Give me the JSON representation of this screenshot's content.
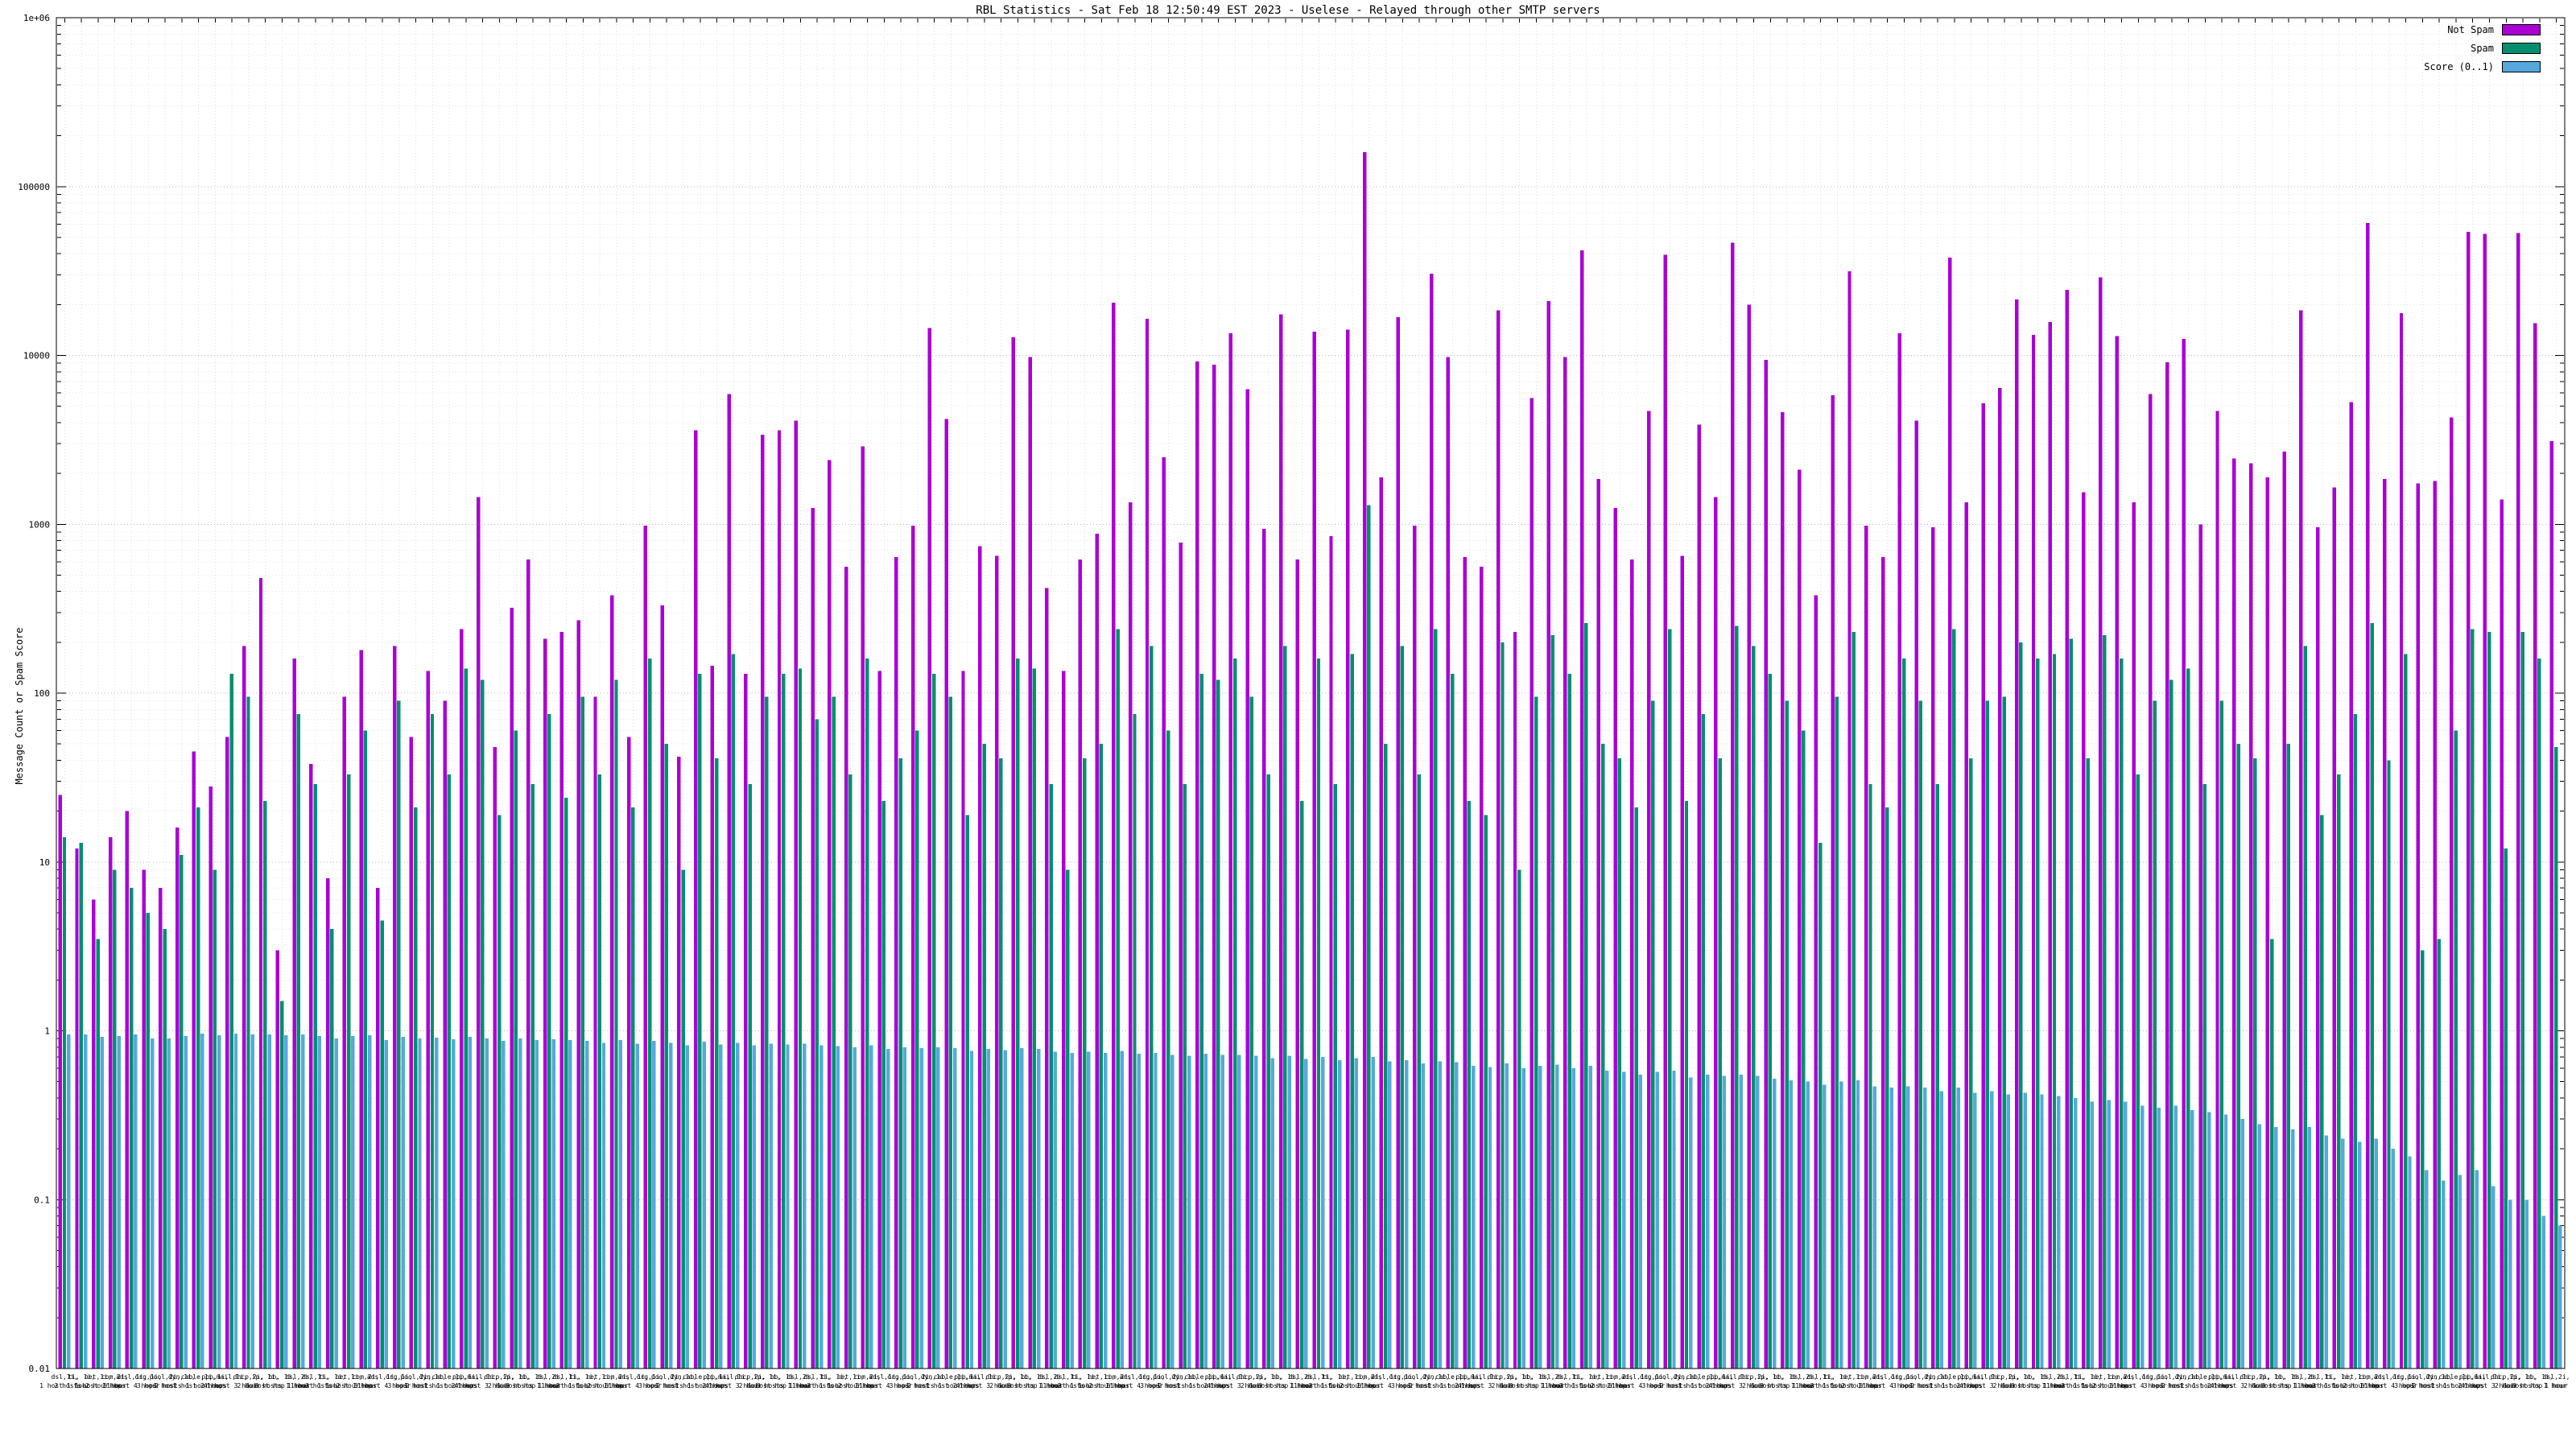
{
  "chart_data": {
    "type": "bar",
    "title": "RBL Statistics - Sat Feb 18 12:50:49 EST 2023 - Uselese - Relayed through other SMTP servers",
    "ylabel": "Message Count or Spam Score",
    "xlabel": "",
    "y_scale": "log",
    "ylim": [
      0.01,
      1000000
    ],
    "grid": true,
    "legend_position": "top-right",
    "y_ticks": [
      {
        "v": 1000000,
        "label": "1e+06"
      },
      {
        "v": 100000,
        "label": "100000"
      },
      {
        "v": 10000,
        "label": "10000"
      },
      {
        "v": 1000,
        "label": "1000"
      },
      {
        "v": 100,
        "label": "100"
      },
      {
        "v": 10,
        "label": "10"
      },
      {
        "v": 1,
        "label": "1"
      },
      {
        "v": 0.1,
        "label": "0.1"
      },
      {
        "v": 0.01,
        "label": "0.01"
      }
    ],
    "x_axis_note": "x tick labels (host names, host/hop/hour counts) are illegible at capture resolution; representative sample labels are cycled",
    "x_labels_sample": [
      {
        "l1": "dsl,1i,",
        "l2": "1 host 1 hour"
      },
      {
        "l1": "ti, 1i,",
        "l2": "2 hosts 2 hour"
      },
      {
        "l1": "net,1i,",
        "l2": "1 host 1 hop"
      },
      {
        "l1": "com,2i,",
        "l2": "5 hour"
      },
      {
        "l1": "adsl,1i,",
        "l2": "1 host 4 hops"
      },
      {
        "l1": "org,1i,",
        "l2": "3 hour"
      },
      {
        "l1": "pool,2i,",
        "l2": "1 host"
      },
      {
        "l1": "dyn,1i,",
        "l2": "2 hosts 1 hour"
      },
      {
        "l1": "cable,1i,",
        "l2": "1 host 2 hour"
      },
      {
        "l1": "ppp,1i,",
        "l2": "4 hops"
      },
      {
        "l1": "mail,1i,",
        "l2": "1 host 3 hour"
      },
      {
        "l1": "dhcp,2i,",
        "l2": "2 hour"
      },
      {
        "l1": "ip, 1i,",
        "l2": "1 host hop"
      },
      {
        "l1": "bb, 1i,",
        "l2": "3 hosts 1 hour"
      },
      {
        "l1": "dsl,2i,",
        "l2": "1 hour"
      }
    ],
    "series": [
      {
        "name": "Not Spam",
        "color": "#aa00d4",
        "values": [
          25,
          12,
          6,
          14,
          20,
          9,
          7,
          16,
          45,
          28,
          55,
          190,
          480,
          3,
          160,
          38,
          8,
          95,
          180,
          7,
          190,
          55,
          135,
          90,
          240,
          1450,
          48,
          320,
          620,
          210,
          230,
          270,
          95,
          380,
          55,
          980,
          330,
          42,
          3600,
          145,
          5900,
          130,
          3400,
          3600,
          4100,
          1250,
          2400,
          560,
          2900,
          135,
          640,
          980,
          14500,
          4200,
          135,
          740,
          650,
          12800,
          9800,
          420,
          135,
          620,
          880,
          20500,
          1350,
          16500,
          2500,
          780,
          9200,
          8800,
          13500,
          6300,
          940,
          17500,
          620,
          13800,
          850,
          14200,
          160000,
          1900,
          16800,
          980,
          30500,
          9800,
          640,
          560,
          18500,
          230,
          5600,
          21000,
          9800,
          42000,
          1850,
          1250,
          620,
          4700,
          39500,
          650,
          3900,
          1450,
          46500,
          20000,
          9400,
          4600,
          2100,
          380,
          5800,
          31500,
          980,
          640,
          13500,
          4100,
          960,
          38000,
          1350,
          5200,
          6400,
          21500,
          13200,
          15800,
          24500,
          1550,
          29000,
          13000,
          1350,
          5900,
          9100,
          12500,
          1000,
          4700,
          2450,
          2300,
          1900,
          2700,
          18500,
          960,
          1650,
          5300,
          61000,
          1850,
          17800,
          1750,
          1800,
          4300,
          54000,
          52500,
          1400,
          53000,
          15500,
          3100
        ]
      },
      {
        "name": "Spam",
        "color": "#008f6e",
        "values": [
          14,
          13,
          3.5,
          9,
          7,
          5,
          4,
          11,
          21,
          9,
          130,
          95,
          23,
          1.5,
          75,
          29,
          4,
          33,
          60,
          4.5,
          90,
          21,
          75,
          33,
          140,
          120,
          19,
          60,
          29,
          75,
          24,
          95,
          33,
          120,
          21,
          160,
          50,
          9,
          130,
          41,
          170,
          29,
          95,
          130,
          140,
          70,
          95,
          33,
          160,
          23,
          41,
          60,
          130,
          95,
          19,
          50,
          41,
          160,
          140,
          29,
          9,
          41,
          50,
          240,
          75,
          190,
          60,
          29,
          130,
          120,
          160,
          95,
          33,
          190,
          23,
          160,
          29,
          170,
          1300,
          50,
          190,
          33,
          240,
          130,
          23,
          19,
          200,
          9,
          95,
          220,
          130,
          260,
          50,
          41,
          21,
          90,
          240,
          23,
          75,
          41,
          250,
          190,
          130,
          90,
          60,
          13,
          95,
          230,
          29,
          21,
          160,
          90,
          29,
          240,
          41,
          90,
          95,
          200,
          160,
          170,
          210,
          41,
          220,
          160,
          33,
          90,
          120,
          140,
          29,
          90,
          50,
          41,
          3.5,
          50,
          190,
          19,
          33,
          75,
          260,
          40,
          170,
          3,
          3.5,
          60,
          240,
          230,
          12,
          230,
          160,
          48
        ]
      },
      {
        "name": "Score (0..1)",
        "color": "#56a8dc",
        "values": [
          0.95,
          0.95,
          0.92,
          0.93,
          0.95,
          0.9,
          0.9,
          0.93,
          0.96,
          0.94,
          0.96,
          0.95,
          0.95,
          0.94,
          0.95,
          0.93,
          0.9,
          0.93,
          0.94,
          0.88,
          0.92,
          0.9,
          0.91,
          0.89,
          0.92,
          0.9,
          0.87,
          0.9,
          0.88,
          0.89,
          0.88,
          0.87,
          0.85,
          0.88,
          0.84,
          0.87,
          0.85,
          0.82,
          0.86,
          0.83,
          0.85,
          0.82,
          0.84,
          0.83,
          0.84,
          0.82,
          0.81,
          0.8,
          0.82,
          0.78,
          0.8,
          0.79,
          0.8,
          0.79,
          0.76,
          0.78,
          0.77,
          0.79,
          0.78,
          0.75,
          0.74,
          0.75,
          0.74,
          0.76,
          0.73,
          0.74,
          0.72,
          0.71,
          0.73,
          0.72,
          0.72,
          0.71,
          0.69,
          0.71,
          0.68,
          0.7,
          0.67,
          0.69,
          0.7,
          0.66,
          0.67,
          0.64,
          0.66,
          0.65,
          0.62,
          0.61,
          0.64,
          0.6,
          0.62,
          0.63,
          0.6,
          0.62,
          0.58,
          0.57,
          0.55,
          0.57,
          0.58,
          0.53,
          0.55,
          0.54,
          0.55,
          0.54,
          0.52,
          0.51,
          0.5,
          0.48,
          0.5,
          0.51,
          0.47,
          0.46,
          0.47,
          0.46,
          0.44,
          0.46,
          0.43,
          0.44,
          0.42,
          0.43,
          0.42,
          0.41,
          0.4,
          0.38,
          0.39,
          0.38,
          0.36,
          0.35,
          0.36,
          0.34,
          0.33,
          0.32,
          0.3,
          0.28,
          0.27,
          0.26,
          0.27,
          0.24,
          0.23,
          0.22,
          0.23,
          0.2,
          0.18,
          0.15,
          0.13,
          0.14,
          0.15,
          0.12,
          0.1,
          0.1,
          0.08,
          0.07
        ]
      }
    ]
  }
}
